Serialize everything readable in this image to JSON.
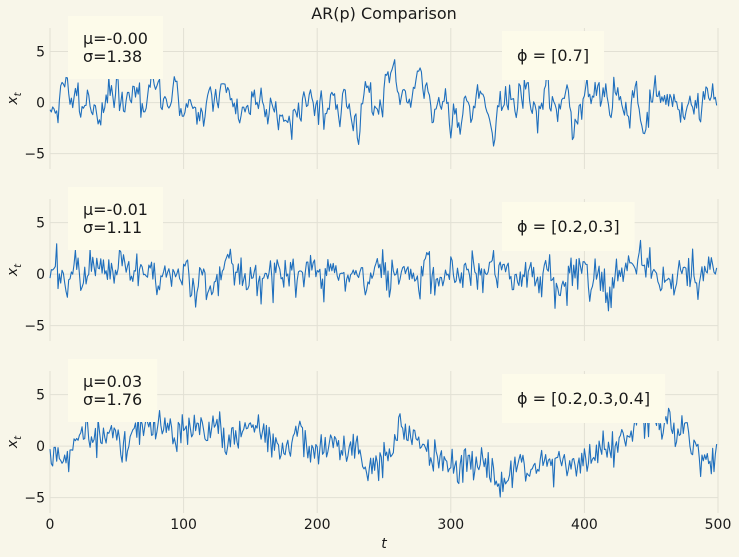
{
  "chart_data": {
    "type": "line",
    "title": "AR(p) Comparison",
    "xlabel": "t",
    "xlim": [
      0,
      500
    ],
    "x_ticks": [
      0,
      100,
      200,
      300,
      400,
      500
    ],
    "line_color": "#1f6fbd",
    "background": "#f8f6e9",
    "grid": true,
    "panels": [
      {
        "ylabel": "x_t",
        "ylim": [
          -6.5,
          7.3
        ],
        "y_ticks": [
          -5,
          0,
          5
        ],
        "phi_label": "ϕ = [0.7]",
        "mean_label": "μ=-0.00",
        "std_label": "σ=1.38",
        "series": {
          "n": 500,
          "phi": [
            0.7
          ],
          "mean": -0.0,
          "std": 1.38,
          "seed": 11
        }
      },
      {
        "ylabel": "x_t",
        "ylim": [
          -6.5,
          7.3
        ],
        "y_ticks": [
          -5,
          0,
          5
        ],
        "phi_label": "ϕ = [0.2,0.3]",
        "mean_label": "μ=-0.01",
        "std_label": "σ=1.11",
        "series": {
          "n": 500,
          "phi": [
            0.2,
            0.3
          ],
          "mean": -0.01,
          "std": 1.11,
          "seed": 23
        }
      },
      {
        "ylabel": "x_t",
        "ylim": [
          -6.5,
          7.3
        ],
        "y_ticks": [
          -5,
          0,
          5
        ],
        "phi_label": "ϕ = [0.2,0.3,0.4]",
        "mean_label": "μ=0.03",
        "std_label": "σ=1.76",
        "series": {
          "n": 500,
          "phi": [
            0.2,
            0.3,
            0.4
          ],
          "mean": 0.03,
          "std": 1.76,
          "seed": 37
        }
      }
    ]
  }
}
